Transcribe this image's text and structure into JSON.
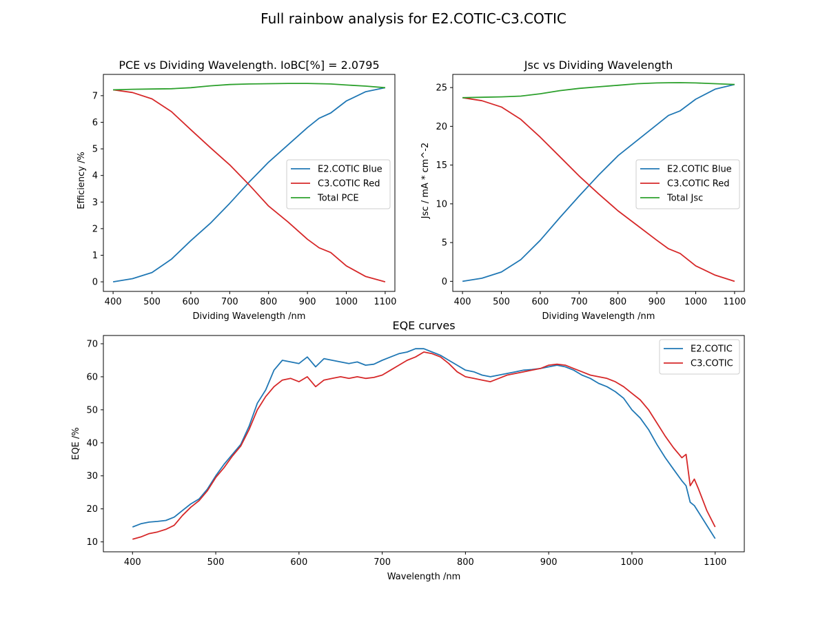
{
  "figure": {
    "title": "Full rainbow analysis for E2.COTIC-C3.COTIC"
  },
  "colors": {
    "blue": "#1f77b4",
    "red": "#d62728",
    "green": "#2ca02c"
  },
  "chart_data": [
    {
      "id": "pce",
      "type": "line",
      "title": "PCE vs Dividing Wavelength. IoBC[%] = 2.0795",
      "xlabel": "Dividing Wavelength /nm",
      "ylabel": "Efficiency /%",
      "xlim": [
        375,
        1125
      ],
      "ylim": [
        -0.36,
        7.8
      ],
      "xticks": [
        400,
        500,
        600,
        700,
        800,
        900,
        1000,
        1100
      ],
      "yticks": [
        0,
        1,
        2,
        3,
        4,
        5,
        6,
        7
      ],
      "legend_position": "center-right",
      "x": [
        400,
        450,
        500,
        550,
        600,
        650,
        700,
        750,
        800,
        850,
        900,
        930,
        960,
        1000,
        1050,
        1100
      ],
      "series": [
        {
          "name": "E2.COTIC Blue",
          "color": "#1f77b4",
          "values": [
            0.0,
            0.12,
            0.35,
            0.85,
            1.55,
            2.2,
            2.95,
            3.75,
            4.5,
            5.15,
            5.8,
            6.15,
            6.35,
            6.8,
            7.15,
            7.3
          ]
        },
        {
          "name": "C3.COTIC Red",
          "color": "#d62728",
          "values": [
            7.22,
            7.12,
            6.88,
            6.4,
            5.72,
            5.05,
            4.4,
            3.65,
            2.85,
            2.25,
            1.6,
            1.28,
            1.1,
            0.6,
            0.2,
            0.0
          ]
        },
        {
          "name": "Total PCE",
          "color": "#2ca02c",
          "values": [
            7.22,
            7.24,
            7.25,
            7.26,
            7.3,
            7.37,
            7.42,
            7.44,
            7.45,
            7.46,
            7.46,
            7.45,
            7.44,
            7.4,
            7.36,
            7.3
          ]
        }
      ]
    },
    {
      "id": "jsc",
      "type": "line",
      "title": "Jsc vs Dividing Wavelength",
      "xlabel": "Dividing Wavelength /nm",
      "ylabel": "Jsc / mA * cm^-2",
      "xlim": [
        375,
        1125
      ],
      "ylim": [
        -1.3,
        26.7
      ],
      "xticks": [
        400,
        500,
        600,
        700,
        800,
        900,
        1000,
        1100
      ],
      "yticks": [
        0,
        5,
        10,
        15,
        20,
        25
      ],
      "legend_position": "center-right",
      "x": [
        400,
        450,
        500,
        550,
        600,
        650,
        700,
        750,
        800,
        850,
        900,
        930,
        960,
        1000,
        1050,
        1100
      ],
      "series": [
        {
          "name": "E2.COTIC Blue",
          "color": "#1f77b4",
          "values": [
            0.0,
            0.4,
            1.2,
            2.8,
            5.3,
            8.2,
            11.0,
            13.7,
            16.2,
            18.2,
            20.2,
            21.4,
            22.0,
            23.5,
            24.8,
            25.4
          ]
        },
        {
          "name": "C3.COTIC Red",
          "color": "#d62728",
          "values": [
            23.7,
            23.3,
            22.5,
            20.9,
            18.6,
            16.1,
            13.6,
            11.3,
            9.1,
            7.2,
            5.3,
            4.2,
            3.6,
            2.0,
            0.8,
            0.0
          ]
        },
        {
          "name": "Total Jsc",
          "color": "#2ca02c",
          "values": [
            23.7,
            23.75,
            23.8,
            23.9,
            24.2,
            24.6,
            24.9,
            25.1,
            25.3,
            25.5,
            25.6,
            25.62,
            25.63,
            25.6,
            25.5,
            25.4
          ]
        }
      ]
    },
    {
      "id": "eqe",
      "type": "line",
      "title": "EQE curves",
      "xlabel": "Wavelength /nm",
      "ylabel": "EQE /%",
      "xlim": [
        365,
        1135
      ],
      "ylim": [
        7.0,
        72.5
      ],
      "xticks": [
        400,
        500,
        600,
        700,
        800,
        900,
        1000,
        1100
      ],
      "yticks": [
        10,
        20,
        30,
        40,
        50,
        60,
        70
      ],
      "legend_position": "top-right",
      "x": [
        400,
        410,
        420,
        430,
        440,
        450,
        460,
        470,
        480,
        490,
        500,
        510,
        520,
        530,
        540,
        550,
        560,
        570,
        580,
        590,
        600,
        610,
        620,
        630,
        640,
        650,
        660,
        670,
        680,
        690,
        700,
        710,
        720,
        730,
        740,
        750,
        760,
        770,
        780,
        790,
        800,
        810,
        820,
        830,
        840,
        850,
        860,
        870,
        880,
        890,
        900,
        910,
        920,
        930,
        940,
        950,
        960,
        970,
        980,
        990,
        1000,
        1010,
        1020,
        1030,
        1040,
        1050,
        1060,
        1065,
        1070,
        1075,
        1080,
        1090,
        1100
      ],
      "series": [
        {
          "name": "E2.COTIC",
          "color": "#1f77b4",
          "values": [
            14.5,
            15.5,
            16.0,
            16.2,
            16.5,
            17.5,
            19.5,
            21.5,
            23.0,
            26.0,
            30.0,
            33.5,
            36.5,
            39.5,
            45.0,
            52.0,
            56.0,
            62.0,
            65.0,
            64.5,
            64.0,
            66.0,
            63.0,
            65.5,
            65.0,
            64.5,
            64.0,
            64.5,
            63.5,
            63.8,
            65.0,
            66.0,
            67.0,
            67.5,
            68.5,
            68.5,
            67.5,
            66.5,
            65.0,
            63.5,
            62.0,
            61.5,
            60.5,
            60.0,
            60.5,
            61.0,
            61.5,
            62.0,
            62.2,
            62.5,
            63.0,
            63.5,
            63.0,
            62.0,
            60.5,
            59.5,
            58.0,
            57.0,
            55.5,
            53.5,
            50.0,
            47.5,
            44.0,
            39.5,
            35.5,
            32.0,
            28.5,
            27.0,
            22.0,
            21.0,
            19.0,
            15.0,
            11.0
          ]
        },
        {
          "name": "C3.COTIC",
          "color": "#d62728",
          "values": [
            10.8,
            11.5,
            12.5,
            13.0,
            13.8,
            15.0,
            18.0,
            20.5,
            22.5,
            25.5,
            29.5,
            32.5,
            36.0,
            39.0,
            44.0,
            50.0,
            54.0,
            57.0,
            59.0,
            59.5,
            58.5,
            60.0,
            57.0,
            59.0,
            59.5,
            60.0,
            59.5,
            60.0,
            59.5,
            59.8,
            60.5,
            62.0,
            63.5,
            65.0,
            66.0,
            67.5,
            67.0,
            66.0,
            64.0,
            61.5,
            60.0,
            59.5,
            59.0,
            58.5,
            59.5,
            60.5,
            61.0,
            61.5,
            62.0,
            62.5,
            63.5,
            63.8,
            63.5,
            62.5,
            61.5,
            60.5,
            60.0,
            59.5,
            58.5,
            57.0,
            55.0,
            53.0,
            50.0,
            46.0,
            42.0,
            38.5,
            35.5,
            36.5,
            27.0,
            29.0,
            26.0,
            19.5,
            14.5
          ]
        }
      ]
    }
  ]
}
